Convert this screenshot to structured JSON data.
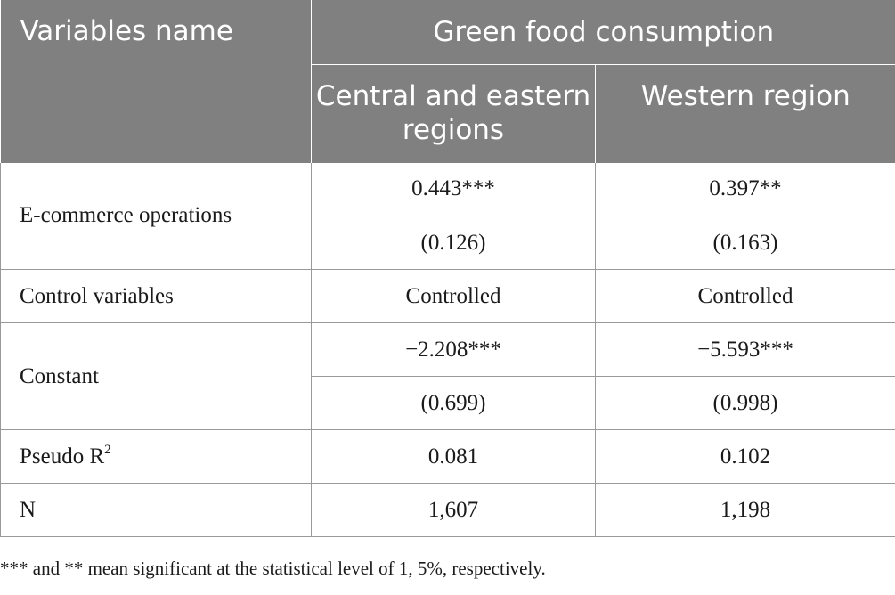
{
  "header": {
    "variables_name": "Variables name",
    "group_title": "Green food consumption",
    "col_central_eastern": "Central and eastern regions",
    "col_western": "Western region"
  },
  "rows": {
    "ecommerce": {
      "label": "E-commerce operations",
      "central_coef": "0.443***",
      "central_se": "(0.126)",
      "western_coef": "0.397**",
      "western_se": "(0.163)"
    },
    "controls": {
      "label": "Control variables",
      "central": "Controlled",
      "western": "Controlled"
    },
    "constant": {
      "label": "Constant",
      "central_coef": "−2.208***",
      "central_se": "(0.699)",
      "western_coef": "−5.593***",
      "western_se": "(0.998)"
    },
    "pseudo_r2": {
      "label": "Pseudo R",
      "label_sup": "2",
      "central": "0.081",
      "western": "0.102"
    },
    "n": {
      "label": "N",
      "central": "1,607",
      "western": "1,198"
    }
  },
  "footnote": "*** and ** mean significant at the statistical level of 1, 5%, respectively."
}
